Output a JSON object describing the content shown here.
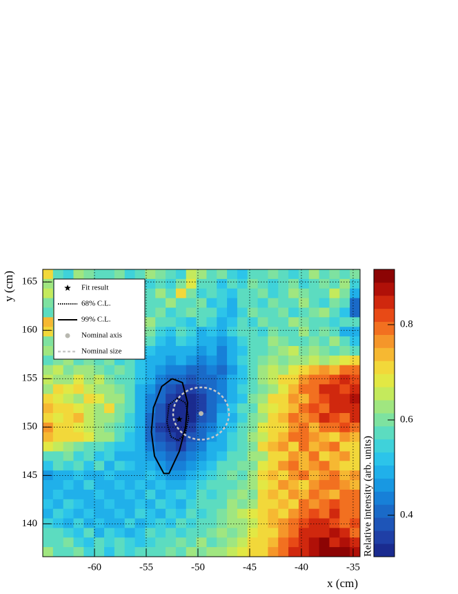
{
  "chart_data": {
    "type": "heatmap",
    "xlabel": "x (cm)",
    "ylabel": "y (cm)",
    "zlabel": "Relative intensity (arb. units)",
    "xlim": [
      -65,
      -34.33
    ],
    "ylim": [
      136.6,
      166.3
    ],
    "xticks": [
      -60,
      -55,
      -50,
      -45,
      -40,
      -35
    ],
    "yticks": [
      140,
      145,
      150,
      155,
      160,
      165
    ],
    "zlim": [
      0.313,
      0.916
    ],
    "zticks": [
      0.4,
      0.6,
      0.8
    ],
    "grid": true,
    "legend": "top-left",
    "colors": [
      "#1a2b8f",
      "#1f3fa6",
      "#1e55b8",
      "#1a6ac8",
      "#1780d8",
      "#1898e2",
      "#20b0ea",
      "#2cc4ea",
      "#3fd2da",
      "#5cdcc0",
      "#7ee2a0",
      "#a0e680",
      "#c4ea5c",
      "#e2e844",
      "#f2d83a",
      "#f6b832",
      "#f5962a",
      "#f27020",
      "#e84a16",
      "#d0280e",
      "#b01008",
      "#8c0404"
    ],
    "z": [
      [
        0.7,
        0.58,
        0.55,
        0.62,
        0.6,
        0.56,
        0.58,
        0.6,
        0.55,
        0.58,
        0.62,
        0.6,
        0.58,
        0.55,
        0.66,
        0.64,
        0.56,
        0.6,
        0.55,
        0.52,
        0.58,
        0.56,
        0.6,
        0.58,
        0.55,
        0.58,
        0.62,
        0.56,
        0.6,
        0.58,
        0.6
      ],
      [
        0.62,
        0.6,
        0.58,
        0.55,
        0.6,
        0.62,
        0.58,
        0.64,
        0.56,
        0.6,
        0.55,
        0.58,
        0.54,
        0.6,
        0.68,
        0.56,
        0.58,
        0.52,
        0.56,
        0.55,
        0.6,
        0.58,
        0.54,
        0.56,
        0.6,
        0.55,
        0.58,
        0.6,
        0.56,
        0.62,
        0.55
      ],
      [
        0.66,
        0.58,
        0.62,
        0.56,
        0.55,
        0.6,
        0.58,
        0.55,
        0.6,
        0.58,
        0.56,
        0.62,
        0.58,
        0.7,
        0.6,
        0.54,
        0.56,
        0.55,
        0.52,
        0.58,
        0.56,
        0.6,
        0.55,
        0.58,
        0.62,
        0.6,
        0.56,
        0.58,
        0.66,
        0.6,
        0.5
      ],
      [
        0.6,
        0.55,
        0.6,
        0.58,
        0.62,
        0.56,
        0.6,
        0.58,
        0.55,
        0.6,
        0.58,
        0.56,
        0.62,
        0.58,
        0.56,
        0.6,
        0.52,
        0.55,
        0.5,
        0.56,
        0.58,
        0.55,
        0.6,
        0.56,
        0.58,
        0.62,
        0.58,
        0.55,
        0.6,
        0.56,
        0.42
      ],
      [
        0.56,
        0.62,
        0.58,
        0.6,
        0.55,
        0.58,
        0.56,
        0.6,
        0.62,
        0.56,
        0.58,
        0.6,
        0.55,
        0.58,
        0.6,
        0.56,
        0.58,
        0.52,
        0.48,
        0.55,
        0.6,
        0.58,
        0.56,
        0.6,
        0.55,
        0.58,
        0.6,
        0.62,
        0.58,
        0.52,
        0.4
      ],
      [
        0.74,
        0.6,
        0.56,
        0.58,
        0.62,
        0.6,
        0.58,
        0.55,
        0.6,
        0.58,
        0.62,
        0.56,
        0.58,
        0.55,
        0.52,
        0.56,
        0.54,
        0.5,
        0.52,
        0.58,
        0.55,
        0.6,
        0.58,
        0.56,
        0.62,
        0.6,
        0.56,
        0.58,
        0.55,
        0.58,
        0.56
      ],
      [
        0.72,
        0.58,
        0.62,
        0.56,
        0.6,
        0.58,
        0.62,
        0.6,
        0.56,
        0.58,
        0.6,
        0.55,
        0.52,
        0.56,
        0.54,
        0.5,
        0.52,
        0.48,
        0.55,
        0.56,
        0.58,
        0.55,
        0.6,
        0.58,
        0.56,
        0.62,
        0.58,
        0.6,
        0.56,
        0.5,
        0.48
      ],
      [
        0.6,
        0.62,
        0.58,
        0.6,
        0.56,
        0.62,
        0.58,
        0.56,
        0.6,
        0.55,
        0.56,
        0.52,
        0.5,
        0.54,
        0.52,
        0.48,
        0.5,
        0.46,
        0.5,
        0.55,
        0.56,
        0.58,
        0.62,
        0.6,
        0.58,
        0.56,
        0.6,
        0.58,
        0.62,
        0.58,
        0.52
      ],
      [
        0.62,
        0.58,
        0.6,
        0.64,
        0.58,
        0.6,
        0.56,
        0.58,
        0.55,
        0.56,
        0.52,
        0.5,
        0.48,
        0.5,
        0.5,
        0.46,
        0.48,
        0.45,
        0.48,
        0.52,
        0.58,
        0.56,
        0.6,
        0.62,
        0.66,
        0.6,
        0.62,
        0.6,
        0.58,
        0.6,
        0.56
      ],
      [
        0.58,
        0.6,
        0.62,
        0.58,
        0.6,
        0.58,
        0.6,
        0.55,
        0.56,
        0.52,
        0.5,
        0.48,
        0.46,
        0.48,
        0.46,
        0.44,
        0.46,
        0.44,
        0.5,
        0.54,
        0.56,
        0.6,
        0.64,
        0.6,
        0.62,
        0.64,
        0.66,
        0.62,
        0.66,
        0.68,
        0.7
      ],
      [
        0.62,
        0.66,
        0.6,
        0.62,
        0.64,
        0.6,
        0.58,
        0.6,
        0.56,
        0.52,
        0.5,
        0.46,
        0.44,
        0.44,
        0.42,
        0.42,
        0.44,
        0.42,
        0.46,
        0.52,
        0.56,
        0.62,
        0.66,
        0.64,
        0.68,
        0.7,
        0.74,
        0.76,
        0.74,
        0.78,
        0.8
      ],
      [
        0.66,
        0.62,
        0.64,
        0.68,
        0.62,
        0.66,
        0.6,
        0.58,
        0.56,
        0.52,
        0.48,
        0.44,
        0.42,
        0.4,
        0.38,
        0.4,
        0.42,
        0.44,
        0.48,
        0.52,
        0.58,
        0.62,
        0.66,
        0.7,
        0.72,
        0.76,
        0.78,
        0.8,
        0.82,
        0.84,
        0.82
      ],
      [
        0.64,
        0.7,
        0.68,
        0.72,
        0.66,
        0.64,
        0.62,
        0.6,
        0.56,
        0.5,
        0.46,
        0.42,
        0.38,
        0.36,
        0.36,
        0.38,
        0.4,
        0.44,
        0.48,
        0.54,
        0.58,
        0.6,
        0.64,
        0.68,
        0.74,
        0.78,
        0.8,
        0.84,
        0.84,
        0.82,
        0.86
      ],
      [
        0.7,
        0.68,
        0.66,
        0.64,
        0.7,
        0.68,
        0.64,
        0.62,
        0.58,
        0.5,
        0.44,
        0.4,
        0.36,
        0.34,
        0.34,
        0.36,
        0.4,
        0.44,
        0.5,
        0.52,
        0.6,
        0.64,
        0.7,
        0.72,
        0.76,
        0.74,
        0.8,
        0.82,
        0.86,
        0.84,
        0.88
      ],
      [
        0.74,
        0.7,
        0.72,
        0.68,
        0.66,
        0.64,
        0.7,
        0.6,
        0.56,
        0.5,
        0.44,
        0.38,
        0.34,
        0.33,
        0.34,
        0.36,
        0.42,
        0.46,
        0.52,
        0.56,
        0.58,
        0.66,
        0.68,
        0.72,
        0.74,
        0.78,
        0.82,
        0.8,
        0.84,
        0.86,
        0.86
      ],
      [
        0.72,
        0.68,
        0.7,
        0.74,
        0.66,
        0.62,
        0.64,
        0.6,
        0.54,
        0.48,
        0.42,
        0.38,
        0.34,
        0.32,
        0.34,
        0.38,
        0.42,
        0.48,
        0.5,
        0.54,
        0.6,
        0.62,
        0.7,
        0.74,
        0.78,
        0.76,
        0.8,
        0.84,
        0.82,
        0.8,
        0.84
      ],
      [
        0.76,
        0.72,
        0.7,
        0.68,
        0.66,
        0.62,
        0.6,
        0.58,
        0.54,
        0.48,
        0.42,
        0.36,
        0.34,
        0.33,
        0.36,
        0.4,
        0.44,
        0.5,
        0.52,
        0.58,
        0.6,
        0.68,
        0.72,
        0.7,
        0.76,
        0.78,
        0.74,
        0.78,
        0.8,
        0.82,
        0.78
      ],
      [
        0.74,
        0.7,
        0.72,
        0.7,
        0.68,
        0.62,
        0.64,
        0.56,
        0.52,
        0.48,
        0.42,
        0.38,
        0.36,
        0.34,
        0.38,
        0.42,
        0.46,
        0.5,
        0.54,
        0.56,
        0.62,
        0.66,
        0.72,
        0.74,
        0.78,
        0.8,
        0.76,
        0.74,
        0.72,
        0.76,
        0.74
      ],
      [
        0.68,
        0.66,
        0.64,
        0.6,
        0.58,
        0.56,
        0.54,
        0.52,
        0.52,
        0.48,
        0.44,
        0.4,
        0.38,
        0.36,
        0.4,
        0.44,
        0.48,
        0.5,
        0.54,
        0.58,
        0.6,
        0.7,
        0.74,
        0.76,
        0.72,
        0.78,
        0.74,
        0.76,
        0.78,
        0.72,
        0.7
      ],
      [
        0.56,
        0.58,
        0.6,
        0.54,
        0.56,
        0.52,
        0.54,
        0.5,
        0.5,
        0.48,
        0.46,
        0.44,
        0.42,
        0.4,
        0.44,
        0.46,
        0.5,
        0.52,
        0.56,
        0.58,
        0.62,
        0.64,
        0.72,
        0.7,
        0.76,
        0.74,
        0.78,
        0.72,
        0.74,
        0.76,
        0.72
      ],
      [
        0.52,
        0.56,
        0.54,
        0.58,
        0.52,
        0.56,
        0.5,
        0.54,
        0.52,
        0.5,
        0.48,
        0.46,
        0.44,
        0.44,
        0.46,
        0.5,
        0.52,
        0.56,
        0.58,
        0.6,
        0.6,
        0.68,
        0.72,
        0.76,
        0.78,
        0.74,
        0.76,
        0.8,
        0.74,
        0.72,
        0.7
      ],
      [
        0.46,
        0.5,
        0.48,
        0.52,
        0.5,
        0.48,
        0.52,
        0.5,
        0.48,
        0.5,
        0.52,
        0.48,
        0.46,
        0.46,
        0.5,
        0.52,
        0.54,
        0.58,
        0.6,
        0.56,
        0.62,
        0.7,
        0.74,
        0.72,
        0.76,
        0.78,
        0.74,
        0.76,
        0.78,
        0.74,
        0.76
      ],
      [
        0.5,
        0.48,
        0.52,
        0.5,
        0.54,
        0.5,
        0.48,
        0.52,
        0.5,
        0.52,
        0.5,
        0.52,
        0.48,
        0.5,
        0.52,
        0.54,
        0.56,
        0.58,
        0.56,
        0.6,
        0.64,
        0.68,
        0.72,
        0.76,
        0.74,
        0.72,
        0.76,
        0.78,
        0.8,
        0.76,
        0.74
      ],
      [
        0.48,
        0.52,
        0.5,
        0.48,
        0.5,
        0.52,
        0.5,
        0.48,
        0.52,
        0.5,
        0.54,
        0.5,
        0.52,
        0.54,
        0.52,
        0.56,
        0.54,
        0.58,
        0.6,
        0.62,
        0.6,
        0.7,
        0.74,
        0.72,
        0.76,
        0.74,
        0.78,
        0.76,
        0.74,
        0.78,
        0.8
      ],
      [
        0.52,
        0.5,
        0.54,
        0.52,
        0.48,
        0.5,
        0.52,
        0.5,
        0.48,
        0.52,
        0.5,
        0.54,
        0.52,
        0.5,
        0.54,
        0.56,
        0.58,
        0.56,
        0.62,
        0.6,
        0.64,
        0.72,
        0.7,
        0.74,
        0.72,
        0.78,
        0.76,
        0.8,
        0.82,
        0.78,
        0.8
      ],
      [
        0.5,
        0.54,
        0.52,
        0.5,
        0.52,
        0.48,
        0.5,
        0.52,
        0.5,
        0.54,
        0.52,
        0.5,
        0.54,
        0.52,
        0.56,
        0.54,
        0.58,
        0.6,
        0.62,
        0.66,
        0.68,
        0.7,
        0.74,
        0.72,
        0.76,
        0.78,
        0.82,
        0.8,
        0.84,
        0.8,
        0.78
      ],
      [
        0.54,
        0.52,
        0.5,
        0.54,
        0.5,
        0.52,
        0.48,
        0.5,
        0.54,
        0.5,
        0.52,
        0.54,
        0.52,
        0.56,
        0.54,
        0.58,
        0.56,
        0.6,
        0.64,
        0.62,
        0.66,
        0.72,
        0.74,
        0.76,
        0.78,
        0.82,
        0.84,
        0.86,
        0.82,
        0.8,
        0.82
      ],
      [
        0.56,
        0.58,
        0.54,
        0.52,
        0.56,
        0.5,
        0.54,
        0.52,
        0.5,
        0.52,
        0.56,
        0.54,
        0.56,
        0.54,
        0.58,
        0.56,
        0.6,
        0.62,
        0.6,
        0.64,
        0.68,
        0.7,
        0.72,
        0.76,
        0.8,
        0.84,
        0.86,
        0.84,
        0.88,
        0.84,
        0.8
      ],
      [
        0.58,
        0.56,
        0.6,
        0.54,
        0.52,
        0.56,
        0.54,
        0.58,
        0.54,
        0.52,
        0.54,
        0.56,
        0.58,
        0.6,
        0.56,
        0.62,
        0.58,
        0.6,
        0.64,
        0.66,
        0.7,
        0.72,
        0.74,
        0.78,
        0.82,
        0.84,
        0.88,
        0.9,
        0.86,
        0.88,
        0.84
      ],
      [
        0.62,
        0.58,
        0.56,
        0.6,
        0.54,
        0.58,
        0.52,
        0.56,
        0.54,
        0.56,
        0.58,
        0.56,
        0.6,
        0.58,
        0.62,
        0.6,
        0.64,
        0.62,
        0.66,
        0.68,
        0.72,
        0.7,
        0.76,
        0.8,
        0.84,
        0.86,
        0.88,
        0.9,
        0.9,
        0.9,
        0.88
      ]
    ],
    "fit_result": {
      "name": "Fit result",
      "x": -51.8,
      "y": 150.8,
      "color": "#000000"
    },
    "contours": [
      {
        "name": "68% C.L.",
        "style": "dotted",
        "color": "#000000",
        "x": [
          -52,
          -51.2,
          -50.9,
          -51.2,
          -51.9,
          -52.6,
          -53,
          -52.8,
          -52
        ],
        "y": [
          153,
          152.5,
          151,
          149.4,
          148.6,
          149,
          150.5,
          152.3,
          153
        ]
      },
      {
        "name": "99% C.L.",
        "style": "solid",
        "color": "#000000",
        "x": [
          -52.5,
          -51.5,
          -51,
          -51.2,
          -51.8,
          -52.8,
          -53.3,
          -54.2,
          -54.5,
          -54.3,
          -53.5,
          -52.5
        ],
        "y": [
          155,
          154.6,
          152.5,
          150,
          147.5,
          145.2,
          145.2,
          147,
          149.5,
          152,
          154.2,
          155
        ]
      }
    ],
    "nominal_axis": {
      "name": "Nominal axis",
      "x": -49.7,
      "y": 151.4,
      "color": "#b8b8b0"
    },
    "nominal_size": {
      "name": "Nominal size",
      "radius": 2.7,
      "color": "#c8c8c8"
    }
  }
}
